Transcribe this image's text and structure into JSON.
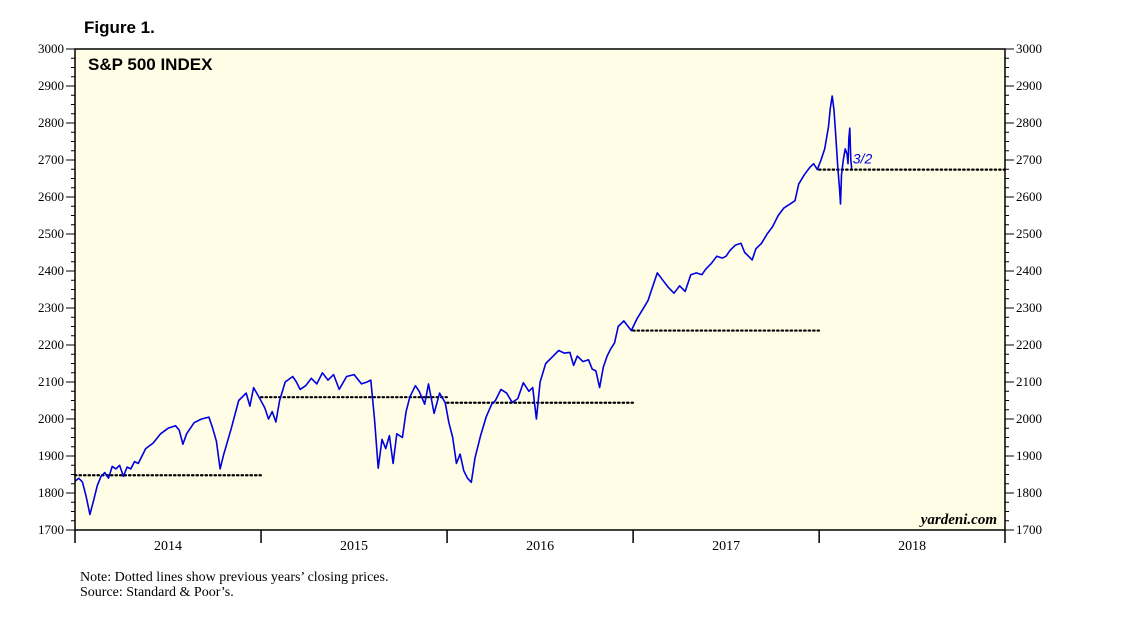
{
  "figure_label": "Figure 1.",
  "footnotes": {
    "note": "Note: Dotted lines show previous years’ closing prices.",
    "source": "Source: Standard & Poor’s."
  },
  "watermark": "yardeni.com",
  "colors": {
    "series": "#0000e0",
    "plot_bg": "#fffde6",
    "reference": "#000000"
  },
  "chart_data": {
    "type": "line",
    "title": "S&P 500 INDEX",
    "xlabel": "",
    "ylabel": "",
    "xlim": [
      2014.0,
      2018.999
    ],
    "ylim": [
      1700,
      3000
    ],
    "yticks": [
      1700,
      1800,
      1900,
      2000,
      2100,
      2200,
      2300,
      2400,
      2500,
      2600,
      2700,
      2800,
      2900,
      3000
    ],
    "x_tick_labels": [
      "2014",
      "2015",
      "2016",
      "2017",
      "2018"
    ],
    "grid": false,
    "axes": "left and right y-axes",
    "annotation": {
      "text": "3/2",
      "x": 2018.17,
      "y": 2691
    },
    "reference_lines": [
      {
        "y": 1848,
        "x_start": 2014.0,
        "x_end": 2014.999
      },
      {
        "y": 2059,
        "x_start": 2015.0,
        "x_end": 2015.999
      },
      {
        "y": 2044,
        "x_start": 2016.0,
        "x_end": 2016.999
      },
      {
        "y": 2239,
        "x_start": 2017.0,
        "x_end": 2017.999
      },
      {
        "y": 2674,
        "x_start": 2018.0,
        "x_end": 2018.999
      }
    ],
    "series": [
      {
        "values": [
          [
            2014.0,
            1832
          ],
          [
            2014.02,
            1840
          ],
          [
            2014.04,
            1830
          ],
          [
            2014.06,
            1790
          ],
          [
            2014.08,
            1742
          ],
          [
            2014.1,
            1780
          ],
          [
            2014.12,
            1820
          ],
          [
            2014.14,
            1845
          ],
          [
            2014.16,
            1855
          ],
          [
            2014.18,
            1840
          ],
          [
            2014.2,
            1872
          ],
          [
            2014.22,
            1865
          ],
          [
            2014.24,
            1875
          ],
          [
            2014.26,
            1845
          ],
          [
            2014.28,
            1870
          ],
          [
            2014.3,
            1865
          ],
          [
            2014.32,
            1885
          ],
          [
            2014.34,
            1880
          ],
          [
            2014.36,
            1900
          ],
          [
            2014.38,
            1920
          ],
          [
            2014.42,
            1935
          ],
          [
            2014.46,
            1960
          ],
          [
            2014.5,
            1975
          ],
          [
            2014.54,
            1982
          ],
          [
            2014.56,
            1970
          ],
          [
            2014.58,
            1932
          ],
          [
            2014.6,
            1960
          ],
          [
            2014.64,
            1990
          ],
          [
            2014.68,
            2000
          ],
          [
            2014.72,
            2005
          ],
          [
            2014.74,
            1975
          ],
          [
            2014.76,
            1940
          ],
          [
            2014.78,
            1865
          ],
          [
            2014.8,
            1905
          ],
          [
            2014.84,
            1975
          ],
          [
            2014.88,
            2050
          ],
          [
            2014.92,
            2070
          ],
          [
            2014.94,
            2035
          ],
          [
            2014.96,
            2085
          ],
          [
            2014.99,
            2058
          ],
          [
            2015.02,
            2030
          ],
          [
            2015.04,
            2000
          ],
          [
            2015.06,
            2020
          ],
          [
            2015.08,
            1992
          ],
          [
            2015.1,
            2050
          ],
          [
            2015.13,
            2100
          ],
          [
            2015.17,
            2115
          ],
          [
            2015.19,
            2100
          ],
          [
            2015.21,
            2080
          ],
          [
            2015.24,
            2090
          ],
          [
            2015.27,
            2110
          ],
          [
            2015.3,
            2095
          ],
          [
            2015.33,
            2125
          ],
          [
            2015.36,
            2105
          ],
          [
            2015.39,
            2120
          ],
          [
            2015.42,
            2080
          ],
          [
            2015.46,
            2115
          ],
          [
            2015.5,
            2120
          ],
          [
            2015.54,
            2095
          ],
          [
            2015.57,
            2100
          ],
          [
            2015.59,
            2105
          ],
          [
            2015.61,
            2000
          ],
          [
            2015.63,
            1867
          ],
          [
            2015.65,
            1945
          ],
          [
            2015.67,
            1920
          ],
          [
            2015.69,
            1955
          ],
          [
            2015.71,
            1880
          ],
          [
            2015.73,
            1960
          ],
          [
            2015.76,
            1950
          ],
          [
            2015.78,
            2020
          ],
          [
            2015.8,
            2060
          ],
          [
            2015.83,
            2090
          ],
          [
            2015.85,
            2075
          ],
          [
            2015.88,
            2040
          ],
          [
            2015.9,
            2095
          ],
          [
            2015.93,
            2015
          ],
          [
            2015.96,
            2070
          ],
          [
            2015.99,
            2044
          ],
          [
            2016.01,
            1990
          ],
          [
            2016.03,
            1950
          ],
          [
            2016.05,
            1880
          ],
          [
            2016.07,
            1905
          ],
          [
            2016.09,
            1860
          ],
          [
            2016.11,
            1840
          ],
          [
            2016.13,
            1829
          ],
          [
            2016.15,
            1895
          ],
          [
            2016.18,
            1955
          ],
          [
            2016.21,
            2005
          ],
          [
            2016.24,
            2040
          ],
          [
            2016.26,
            2050
          ],
          [
            2016.29,
            2080
          ],
          [
            2016.32,
            2070
          ],
          [
            2016.35,
            2045
          ],
          [
            2016.38,
            2055
          ],
          [
            2016.41,
            2098
          ],
          [
            2016.44,
            2075
          ],
          [
            2016.46,
            2085
          ],
          [
            2016.48,
            2000
          ],
          [
            2016.5,
            2100
          ],
          [
            2016.53,
            2150
          ],
          [
            2016.56,
            2165
          ],
          [
            2016.6,
            2185
          ],
          [
            2016.63,
            2178
          ],
          [
            2016.66,
            2180
          ],
          [
            2016.68,
            2145
          ],
          [
            2016.7,
            2170
          ],
          [
            2016.73,
            2155
          ],
          [
            2016.76,
            2160
          ],
          [
            2016.78,
            2135
          ],
          [
            2016.8,
            2130
          ],
          [
            2016.82,
            2085
          ],
          [
            2016.84,
            2140
          ],
          [
            2016.86,
            2170
          ],
          [
            2016.88,
            2190
          ],
          [
            2016.9,
            2205
          ],
          [
            2016.92,
            2250
          ],
          [
            2016.95,
            2265
          ],
          [
            2016.99,
            2239
          ],
          [
            2017.02,
            2270
          ],
          [
            2017.05,
            2295
          ],
          [
            2017.08,
            2320
          ],
          [
            2017.1,
            2350
          ],
          [
            2017.13,
            2395
          ],
          [
            2017.16,
            2375
          ],
          [
            2017.19,
            2355
          ],
          [
            2017.22,
            2340
          ],
          [
            2017.25,
            2360
          ],
          [
            2017.28,
            2345
          ],
          [
            2017.31,
            2390
          ],
          [
            2017.34,
            2395
          ],
          [
            2017.37,
            2390
          ],
          [
            2017.39,
            2405
          ],
          [
            2017.42,
            2420
          ],
          [
            2017.45,
            2440
          ],
          [
            2017.48,
            2435
          ],
          [
            2017.5,
            2440
          ],
          [
            2017.52,
            2455
          ],
          [
            2017.55,
            2470
          ],
          [
            2017.58,
            2475
          ],
          [
            2017.6,
            2450
          ],
          [
            2017.62,
            2440
          ],
          [
            2017.64,
            2430
          ],
          [
            2017.66,
            2460
          ],
          [
            2017.69,
            2475
          ],
          [
            2017.72,
            2500
          ],
          [
            2017.75,
            2520
          ],
          [
            2017.78,
            2550
          ],
          [
            2017.81,
            2570
          ],
          [
            2017.84,
            2580
          ],
          [
            2017.87,
            2590
          ],
          [
            2017.89,
            2635
          ],
          [
            2017.92,
            2660
          ],
          [
            2017.95,
            2680
          ],
          [
            2017.97,
            2690
          ],
          [
            2017.99,
            2674
          ],
          [
            2018.01,
            2700
          ],
          [
            2018.03,
            2730
          ],
          [
            2018.05,
            2790
          ],
          [
            2018.06,
            2840
          ],
          [
            2018.07,
            2873
          ],
          [
            2018.08,
            2835
          ],
          [
            2018.09,
            2760
          ],
          [
            2018.1,
            2680
          ],
          [
            2018.11,
            2620
          ],
          [
            2018.115,
            2581
          ],
          [
            2018.12,
            2660
          ],
          [
            2018.13,
            2700
          ],
          [
            2018.14,
            2730
          ],
          [
            2018.15,
            2715
          ],
          [
            2018.155,
            2690
          ],
          [
            2018.16,
            2760
          ],
          [
            2018.165,
            2786
          ],
          [
            2018.17,
            2700
          ],
          [
            2018.175,
            2677
          ]
        ]
      }
    ]
  }
}
